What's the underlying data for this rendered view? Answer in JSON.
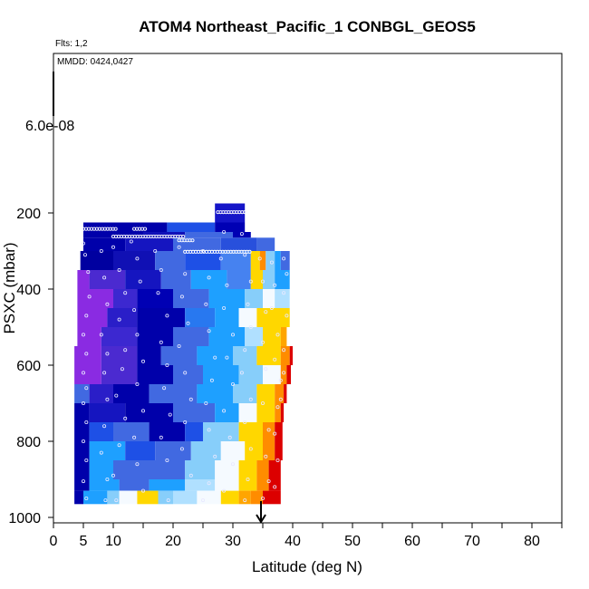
{
  "chart_data": {
    "type": "heatmap",
    "title": "ATOM4 Northeast_Pacific_1 CONBGL_GEOS5",
    "annotations": {
      "flights": "Flts: 1,2",
      "dates": "MMDD: 0424,0427"
    },
    "xlabel": "Latitude (deg N)",
    "ylabel": "PSXC (mbar)",
    "xlim": [
      0,
      85
    ],
    "ylim": [
      1000,
      100
    ],
    "y_scale": "reversed",
    "x_ticks": [
      0,
      5,
      10,
      20,
      30,
      40,
      50,
      60,
      70,
      80
    ],
    "x_minor_ticks": [
      15,
      25,
      35,
      45,
      55,
      65,
      75,
      85
    ],
    "y_ticks": [
      200,
      400,
      600,
      800,
      1000
    ],
    "colorbar_top_label": "6.0e-08",
    "marker_latitude": 34.7,
    "colors": {
      "purple": "#8a2be2",
      "dark_blue": "#0000aa",
      "blue": "#1e50e6",
      "royal_blue": "#4169e1",
      "sky_blue": "#1ea0ff",
      "light_blue": "#87cefa",
      "white": "#f5faff",
      "yellow": "#ffd700",
      "orange": "#ff8c00",
      "red": "#dc0000"
    },
    "bands": [
      {
        "p_top": 175,
        "p_bottom": 225,
        "segments": [
          [
            27,
            32,
            "#1515c8"
          ]
        ]
      },
      {
        "p_top": 225,
        "p_bottom": 250,
        "segments": [
          [
            5,
            19,
            "#0000aa"
          ],
          [
            19,
            27,
            "#1e50e6"
          ],
          [
            27,
            32,
            "#0000b4"
          ]
        ]
      },
      {
        "p_top": 250,
        "p_bottom": 265,
        "segments": [
          [
            5,
            15,
            "#0000aa"
          ],
          [
            15,
            22,
            "#1010b8"
          ],
          [
            22,
            30,
            "#4169e1"
          ],
          [
            30,
            33,
            "#0000b4"
          ]
        ]
      },
      {
        "p_top": 265,
        "p_bottom": 300,
        "segments": [
          [
            5,
            12,
            "#0000aa"
          ],
          [
            12,
            20,
            "#1515c0"
          ],
          [
            20,
            28,
            "#4169e1"
          ],
          [
            28,
            34,
            "#2850dc"
          ],
          [
            34,
            37,
            "#4169e1"
          ]
        ]
      },
      {
        "p_top": 300,
        "p_bottom": 350,
        "segments": [
          [
            4.5,
            10,
            "#0000a0"
          ],
          [
            10,
            17,
            "#1010b4"
          ],
          [
            17,
            22,
            "#4169e1"
          ],
          [
            22,
            28,
            "#1e50e6"
          ],
          [
            28,
            33,
            "#4682f0"
          ],
          [
            33,
            34.5,
            "#ffd700"
          ],
          [
            34.5,
            35.5,
            "#ff8c00"
          ],
          [
            35.5,
            37,
            "#87cefa"
          ],
          [
            37,
            38,
            "#1ea0ff"
          ],
          [
            38,
            39.5,
            "#4169e1"
          ]
        ]
      },
      {
        "p_top": 350,
        "p_bottom": 400,
        "segments": [
          [
            4,
            6,
            "#8a2be2"
          ],
          [
            6,
            12,
            "#4b2ad0"
          ],
          [
            12,
            18,
            "#1515c0"
          ],
          [
            18,
            23,
            "#4169e1"
          ],
          [
            23,
            29,
            "#1ea0ff"
          ],
          [
            29,
            33,
            "#4682f0"
          ],
          [
            33,
            35,
            "#ffd700"
          ],
          [
            35,
            37,
            "#87cefa"
          ],
          [
            37,
            39.5,
            "#1ea0ff"
          ]
        ]
      },
      {
        "p_top": 400,
        "p_bottom": 450,
        "segments": [
          [
            4,
            10,
            "#8a2be2"
          ],
          [
            10,
            14,
            "#3c28d0"
          ],
          [
            14,
            20,
            "#0000b4"
          ],
          [
            20,
            26,
            "#4169e1"
          ],
          [
            26,
            32,
            "#1ea0ff"
          ],
          [
            32,
            35,
            "#87cefa"
          ],
          [
            35,
            37,
            "#f5faff"
          ],
          [
            37,
            39.5,
            "#b0e0ff"
          ]
        ]
      },
      {
        "p_top": 450,
        "p_bottom": 500,
        "segments": [
          [
            4,
            9,
            "#8a2be2"
          ],
          [
            9,
            14,
            "#2a1ec8"
          ],
          [
            14,
            22,
            "#0000aa"
          ],
          [
            22,
            27,
            "#2878f0"
          ],
          [
            27,
            31,
            "#1ea0ff"
          ],
          [
            31,
            34,
            "#f5faff"
          ],
          [
            34,
            39.5,
            "#ffd700"
          ]
        ]
      },
      {
        "p_top": 500,
        "p_bottom": 550,
        "segments": [
          [
            4,
            8,
            "#8a2be2"
          ],
          [
            8,
            14,
            "#3c28d0"
          ],
          [
            14,
            20,
            "#0000aa"
          ],
          [
            20,
            26,
            "#4169e1"
          ],
          [
            26,
            32,
            "#1ea0ff"
          ],
          [
            32,
            35,
            "#b0e0ff"
          ],
          [
            35,
            38,
            "#ffd700"
          ],
          [
            38,
            39,
            "#ffa500"
          ]
        ]
      },
      {
        "p_top": 550,
        "p_bottom": 600,
        "segments": [
          [
            3.5,
            8,
            "#8a2be2"
          ],
          [
            8,
            14,
            "#4b2ad0"
          ],
          [
            14,
            18,
            "#0000aa"
          ],
          [
            18,
            24,
            "#4169e1"
          ],
          [
            24,
            30,
            "#1ea0ff"
          ],
          [
            30,
            34,
            "#87cefa"
          ],
          [
            34,
            38,
            "#ffd700"
          ],
          [
            38,
            39.5,
            "#ff8c00"
          ],
          [
            39.5,
            40,
            "#dc0000"
          ]
        ]
      },
      {
        "p_top": 600,
        "p_bottom": 650,
        "segments": [
          [
            3.5,
            8,
            "#8a2be2"
          ],
          [
            8,
            14,
            "#4b2ad0"
          ],
          [
            14,
            20,
            "#0000aa"
          ],
          [
            20,
            25,
            "#4169e1"
          ],
          [
            25,
            31,
            "#1ea0ff"
          ],
          [
            31,
            35,
            "#87cefa"
          ],
          [
            35,
            38,
            "#f5faff"
          ],
          [
            38,
            39,
            "#ff8c00"
          ],
          [
            39,
            39.7,
            "#dc0000"
          ]
        ]
      },
      {
        "p_top": 650,
        "p_bottom": 700,
        "segments": [
          [
            3.5,
            6,
            "#4169e1"
          ],
          [
            6,
            10,
            "#2a1ec8"
          ],
          [
            10,
            16,
            "#0000aa"
          ],
          [
            16,
            24,
            "#4169e1"
          ],
          [
            24,
            30,
            "#1ea0ff"
          ],
          [
            30,
            34,
            "#87cefa"
          ],
          [
            34,
            37,
            "#ffd700"
          ],
          [
            37,
            38.5,
            "#ff8c00"
          ],
          [
            38.5,
            39,
            "#dc0000"
          ]
        ]
      },
      {
        "p_top": 700,
        "p_bottom": 750,
        "segments": [
          [
            3.5,
            6,
            "#0000aa"
          ],
          [
            6,
            12,
            "#1515c0"
          ],
          [
            12,
            20,
            "#0000aa"
          ],
          [
            20,
            27,
            "#4169e1"
          ],
          [
            27,
            31,
            "#1ea0ff"
          ],
          [
            31,
            34,
            "#f5faff"
          ],
          [
            34,
            37,
            "#ffd700"
          ],
          [
            37,
            38,
            "#ff8c00"
          ],
          [
            38,
            38.5,
            "#dc0000"
          ]
        ]
      },
      {
        "p_top": 750,
        "p_bottom": 800,
        "segments": [
          [
            3.5,
            6,
            "#0000aa"
          ],
          [
            6,
            10,
            "#1e50e6"
          ],
          [
            10,
            16,
            "#4169e1"
          ],
          [
            16,
            22,
            "#0000aa"
          ],
          [
            22,
            25,
            "#1e50e6"
          ],
          [
            25,
            31,
            "#87cefa"
          ],
          [
            31,
            35,
            "#ffd700"
          ],
          [
            35,
            37,
            "#ff8c00"
          ],
          [
            37,
            38.3,
            "#dc0000"
          ]
        ]
      },
      {
        "p_top": 800,
        "p_bottom": 850,
        "segments": [
          [
            3.5,
            6,
            "#0000aa"
          ],
          [
            6,
            12,
            "#1ea0ff"
          ],
          [
            12,
            17,
            "#1e50e6"
          ],
          [
            17,
            23,
            "#4169e1"
          ],
          [
            23,
            28,
            "#87cefa"
          ],
          [
            28,
            32,
            "#f5faff"
          ],
          [
            32,
            35,
            "#ffd700"
          ],
          [
            35,
            37,
            "#ff8c00"
          ],
          [
            37,
            38.3,
            "#dc0000"
          ]
        ]
      },
      {
        "p_top": 850,
        "p_bottom": 900,
        "segments": [
          [
            3.5,
            6,
            "#0000aa"
          ],
          [
            6,
            10,
            "#1ea0ff"
          ],
          [
            10,
            15,
            "#4169e1"
          ],
          [
            15,
            22,
            "#4169e1"
          ],
          [
            22,
            27,
            "#87cefa"
          ],
          [
            27,
            31,
            "#f5faff"
          ],
          [
            31,
            34,
            "#ffd700"
          ],
          [
            34,
            36,
            "#ff8c00"
          ],
          [
            36,
            38,
            "#dc0000"
          ]
        ]
      },
      {
        "p_top": 900,
        "p_bottom": 930,
        "segments": [
          [
            3.5,
            6,
            "#0000aa"
          ],
          [
            6,
            11,
            "#1ea0ff"
          ],
          [
            11,
            16,
            "#4169e1"
          ],
          [
            16,
            22,
            "#1ea0ff"
          ],
          [
            22,
            27,
            "#b0e0ff"
          ],
          [
            27,
            31,
            "#f5faff"
          ],
          [
            31,
            34,
            "#ffd700"
          ],
          [
            34,
            36,
            "#ff8c00"
          ],
          [
            36,
            38,
            "#dc0000"
          ]
        ]
      },
      {
        "p_top": 930,
        "p_bottom": 965,
        "segments": [
          [
            3.5,
            5,
            "#0000aa"
          ],
          [
            5,
            9,
            "#1ea0ff"
          ],
          [
            9,
            11,
            "#87cefa"
          ],
          [
            11,
            14,
            "#f5faff"
          ],
          [
            14,
            17.5,
            "#ffd700"
          ],
          [
            17.5,
            20,
            "#87cefa"
          ],
          [
            20,
            24,
            "#b0e0ff"
          ],
          [
            24,
            28,
            "#f5faff"
          ],
          [
            28,
            31,
            "#ffd700"
          ],
          [
            31,
            33,
            "#ffa500"
          ],
          [
            33,
            35,
            "#ff8c00"
          ],
          [
            35,
            38,
            "#dc0000"
          ]
        ]
      }
    ],
    "sample_tracks": [
      {
        "p": 242,
        "x_from": 5,
        "x_to": 10.5
      },
      {
        "p": 242,
        "x_from": 13.5,
        "x_to": 15.5
      },
      {
        "p": 262,
        "x_from": 10,
        "x_to": 22
      },
      {
        "p": 272,
        "x_from": 21,
        "x_to": 23.5
      },
      {
        "p": 302,
        "x_from": 22,
        "x_to": 33
      },
      {
        "p": 198,
        "x_from": 27.5,
        "x_to": 32
      }
    ],
    "sample_points": [
      [
        5,
        280
      ],
      [
        5.3,
        310
      ],
      [
        5.8,
        355
      ],
      [
        6,
        420
      ],
      [
        5.5,
        470
      ],
      [
        5,
        520
      ],
      [
        5.5,
        570
      ],
      [
        5,
        620
      ],
      [
        5.5,
        660
      ],
      [
        5,
        700
      ],
      [
        5.5,
        750
      ],
      [
        5,
        800
      ],
      [
        5.5,
        850
      ],
      [
        5,
        905
      ],
      [
        5.5,
        950
      ],
      [
        8,
        300
      ],
      [
        8.5,
        370
      ],
      [
        9,
        440
      ],
      [
        8,
        520
      ],
      [
        9,
        570
      ],
      [
        8.5,
        620
      ],
      [
        9,
        690
      ],
      [
        8.5,
        760
      ],
      [
        8,
        830
      ],
      [
        9,
        900
      ],
      [
        8.7,
        955
      ],
      [
        10,
        290
      ],
      [
        11,
        350
      ],
      [
        12,
        410
      ],
      [
        11,
        480
      ],
      [
        12,
        560
      ],
      [
        11.5,
        610
      ],
      [
        10.5,
        680
      ],
      [
        12,
        740
      ],
      [
        11,
        810
      ],
      [
        10,
        890
      ],
      [
        10.5,
        955
      ],
      [
        13,
        275
      ],
      [
        14,
        320
      ],
      [
        14.5,
        380
      ],
      [
        13.5,
        455
      ],
      [
        14,
        520
      ],
      [
        15,
        590
      ],
      [
        14,
        650
      ],
      [
        15,
        720
      ],
      [
        13.5,
        790
      ],
      [
        14,
        860
      ],
      [
        15,
        930
      ],
      [
        17,
        300
      ],
      [
        18,
        350
      ],
      [
        17.5,
        410
      ],
      [
        19,
        470
      ],
      [
        18,
        540
      ],
      [
        19,
        600
      ],
      [
        18.5,
        660
      ],
      [
        19.5,
        730
      ],
      [
        18,
        790
      ],
      [
        19,
        850
      ],
      [
        19.2,
        955
      ],
      [
        21,
        290
      ],
      [
        22,
        360
      ],
      [
        21.5,
        420
      ],
      [
        22.5,
        490
      ],
      [
        21,
        550
      ],
      [
        22,
        620
      ],
      [
        23,
        690
      ],
      [
        22,
        750
      ],
      [
        21.5,
        820
      ],
      [
        23,
        890
      ],
      [
        25,
        300
      ],
      [
        26,
        370
      ],
      [
        25.5,
        440
      ],
      [
        26,
        510
      ],
      [
        27,
        580
      ],
      [
        26.5,
        640
      ],
      [
        25.5,
        700
      ],
      [
        26,
        770
      ],
      [
        27,
        840
      ],
      [
        26,
        910
      ],
      [
        25,
        955
      ],
      [
        28.5,
        250
      ],
      [
        28,
        320
      ],
      [
        29,
        390
      ],
      [
        28.5,
        450
      ],
      [
        30,
        520
      ],
      [
        29,
        580
      ],
      [
        30,
        650
      ],
      [
        28.5,
        720
      ],
      [
        29.5,
        790
      ],
      [
        30,
        860
      ],
      [
        28.5,
        930
      ],
      [
        31.5,
        255
      ],
      [
        32,
        310
      ],
      [
        33,
        380
      ],
      [
        32.5,
        440
      ],
      [
        33,
        500
      ],
      [
        32,
        560
      ],
      [
        31.5,
        620
      ],
      [
        33,
        690
      ],
      [
        32,
        750
      ],
      [
        33,
        820
      ],
      [
        32.5,
        900
      ],
      [
        32,
        955
      ],
      [
        34.5,
        320
      ],
      [
        35,
        380
      ],
      [
        35.5,
        460
      ],
      [
        35,
        540
      ],
      [
        35.5,
        610
      ],
      [
        35,
        700
      ],
      [
        36,
        770
      ],
      [
        35.5,
        840
      ],
      [
        36,
        905
      ],
      [
        35,
        950
      ],
      [
        36.5,
        330
      ],
      [
        37,
        390
      ],
      [
        36.5,
        450
      ],
      [
        37.5,
        520
      ],
      [
        37,
        585
      ],
      [
        38,
        640
      ],
      [
        37.5,
        710
      ],
      [
        37,
        780
      ],
      [
        37.5,
        850
      ],
      [
        37,
        920
      ],
      [
        38.5,
        320
      ],
      [
        39,
        360
      ],
      [
        38.5,
        410
      ],
      [
        39,
        470
      ],
      [
        38.5,
        560
      ],
      [
        38.5,
        620
      ],
      [
        38,
        690
      ]
    ]
  }
}
